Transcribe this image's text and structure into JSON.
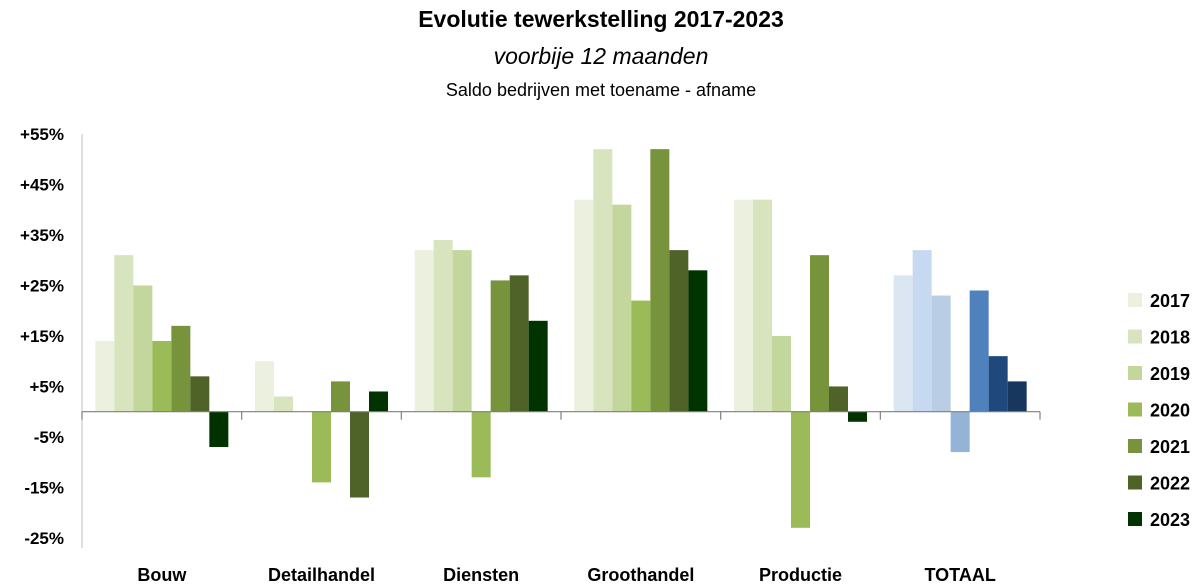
{
  "chart_data": {
    "type": "bar",
    "title": "Evolutie tewerkstelling  2017-2023",
    "subtitle": "voorbije 12 maanden",
    "subtitle2": "Saldo bedrijven met toename - afname",
    "categories": [
      "Bouw",
      "Detailhandel",
      "Diensten",
      "Groothandel",
      "Productie",
      "TOTAAL"
    ],
    "yticks": [
      "+55%",
      "+45%",
      "+35%",
      "+25%",
      "+15%",
      "+5%",
      "-5%",
      "-15%",
      "-25%"
    ],
    "ylim": [
      -27,
      55
    ],
    "grid": false,
    "legend_position": "right",
    "series": [
      {
        "name": "2017",
        "values": [
          14,
          10,
          32,
          42,
          42,
          27
        ],
        "color": "#ebf1de",
        "totaal_color": "#dce6f2"
      },
      {
        "name": "2018",
        "values": [
          31,
          3,
          34,
          52,
          42,
          32
        ],
        "color": "#d7e4bd",
        "totaal_color": "#c6d9f1"
      },
      {
        "name": "2019",
        "values": [
          25,
          0,
          32,
          41,
          15,
          23
        ],
        "color": "#c3d69b",
        "totaal_color": "#b9cde5"
      },
      {
        "name": "2020",
        "values": [
          14,
          -14,
          -13,
          22,
          -23,
          -8
        ],
        "color": "#9bbb59",
        "totaal_color": "#95b3d7"
      },
      {
        "name": "2021",
        "values": [
          17,
          6,
          26,
          52,
          31,
          24
        ],
        "color": "#77933c",
        "totaal_color": "#4f81bd"
      },
      {
        "name": "2022",
        "values": [
          7,
          -17,
          27,
          32,
          5,
          11
        ],
        "color": "#4f6228",
        "totaal_color": "#1f497d"
      },
      {
        "name": "2023",
        "values": [
          -7,
          4,
          18,
          28,
          -2,
          6
        ],
        "color": "#003300",
        "totaal_color": "#17375e"
      }
    ]
  }
}
